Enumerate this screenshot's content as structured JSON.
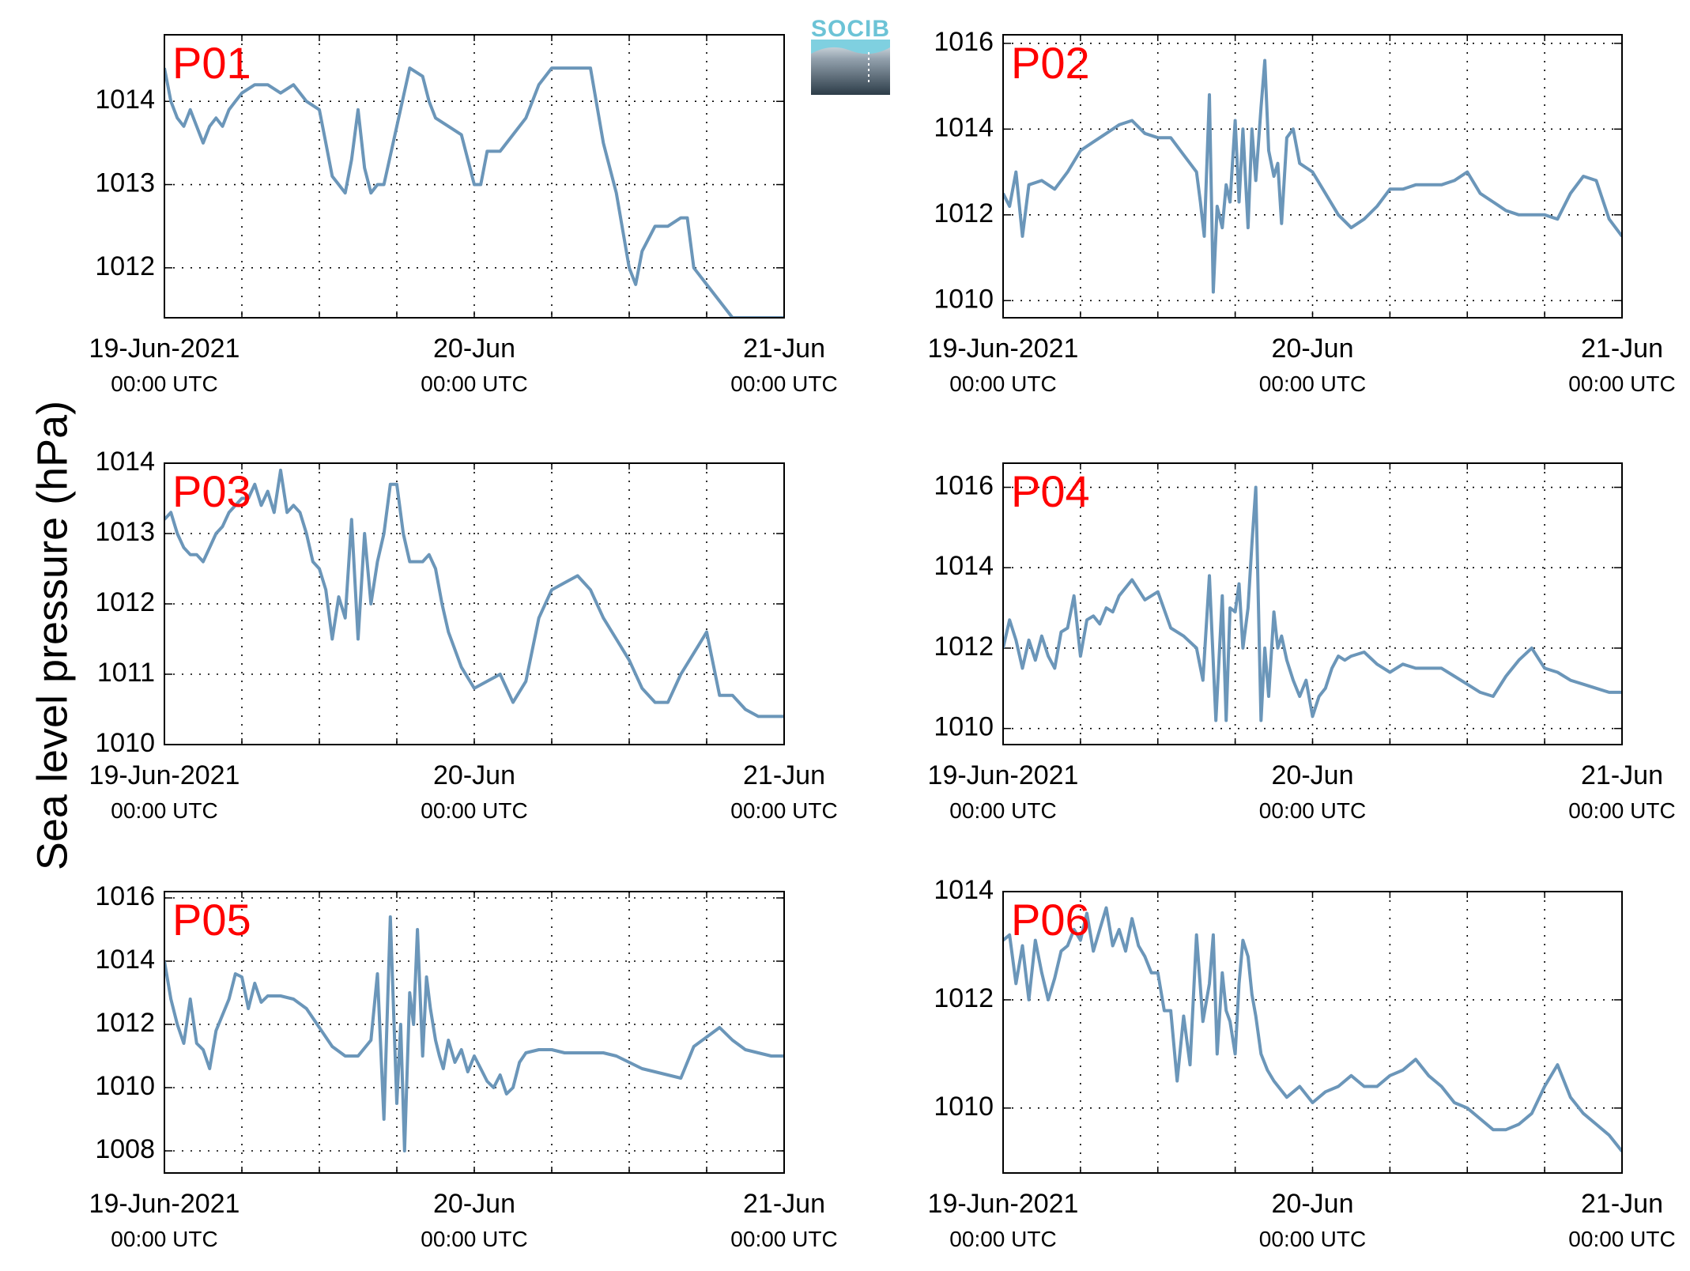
{
  "figure": {
    "ylabel": "Sea level pressure (hPa)",
    "logo_text": "SOCIB",
    "line_color": "#6b96b9",
    "label_color": "#ff0000",
    "x_ticks": [
      {
        "date": "19-Jun-2021",
        "time": "00:00 UTC"
      },
      {
        "date": "20-Jun",
        "time": "00:00 UTC"
      },
      {
        "date": "21-Jun",
        "time": "00:00 UTC"
      }
    ]
  },
  "chart_data": [
    {
      "type": "line",
      "name": "P01",
      "xlim": [
        0,
        48
      ],
      "ylim": [
        1011.4,
        1014.8
      ],
      "yticks": [
        1012,
        1013,
        1014
      ],
      "grid": true,
      "x": [
        0,
        0.5,
        1,
        1.5,
        2,
        2.5,
        3,
        3.5,
        4,
        4.5,
        5,
        5.5,
        6,
        7,
        8,
        9,
        10,
        11,
        12,
        12.5,
        13,
        13.5,
        14,
        14.5,
        15,
        15.5,
        16,
        16.5,
        17,
        18,
        19,
        20,
        20.5,
        21,
        22,
        23,
        24,
        24.5,
        25,
        26,
        27,
        28,
        29,
        30,
        31,
        32,
        33,
        34,
        35,
        36,
        36.5,
        37,
        38,
        39,
        40,
        40.5,
        41,
        42,
        43,
        44,
        45,
        46,
        47,
        48
      ],
      "y": [
        1014.4,
        1014.0,
        1013.8,
        1013.7,
        1013.9,
        1013.7,
        1013.5,
        1013.7,
        1013.8,
        1013.7,
        1013.9,
        1014.0,
        1014.1,
        1014.2,
        1014.2,
        1014.1,
        1014.2,
        1014.0,
        1013.9,
        1013.5,
        1013.1,
        1013.0,
        1012.9,
        1013.3,
        1013.9,
        1013.2,
        1012.9,
        1013.0,
        1013.0,
        1013.7,
        1014.4,
        1014.3,
        1014.0,
        1013.8,
        1013.7,
        1013.6,
        1013.0,
        1013.0,
        1013.4,
        1013.4,
        1013.6,
        1013.8,
        1014.2,
        1014.4,
        1014.4,
        1014.4,
        1014.4,
        1013.5,
        1012.9,
        1012.0,
        1011.8,
        1012.2,
        1012.5,
        1012.5,
        1012.6,
        1012.6,
        1012.0,
        1011.8,
        1011.6,
        1011.4,
        1011.4,
        1011.4,
        1011.4,
        1011.4
      ]
    },
    {
      "type": "line",
      "name": "P02",
      "xlim": [
        0,
        48
      ],
      "ylim": [
        1009.6,
        1016.2
      ],
      "yticks": [
        1010,
        1012,
        1014,
        1016
      ],
      "grid": true,
      "x": [
        0,
        0.5,
        1,
        1.5,
        2,
        3,
        4,
        5,
        6,
        7,
        8,
        9,
        10,
        11,
        12,
        13,
        14,
        15,
        15.3,
        15.6,
        16,
        16.3,
        16.6,
        17,
        17.3,
        17.6,
        18,
        18.3,
        18.6,
        19,
        19.3,
        19.6,
        20,
        20.3,
        20.6,
        21,
        21.3,
        21.6,
        22,
        22.5,
        23,
        24,
        25,
        26,
        27,
        28,
        29,
        30,
        31,
        32,
        33,
        34,
        35,
        36,
        37,
        38,
        39,
        40,
        41,
        42,
        43,
        44,
        45,
        46,
        47,
        48
      ],
      "y": [
        1012.5,
        1012.2,
        1013.0,
        1011.5,
        1012.7,
        1012.8,
        1012.6,
        1013.0,
        1013.5,
        1013.7,
        1013.9,
        1014.1,
        1014.2,
        1013.9,
        1013.8,
        1013.8,
        1013.4,
        1013.0,
        1012.3,
        1011.5,
        1014.8,
        1010.2,
        1012.2,
        1011.7,
        1012.7,
        1012.3,
        1014.2,
        1012.3,
        1014.0,
        1011.7,
        1014.0,
        1012.8,
        1014.5,
        1015.6,
        1013.5,
        1012.9,
        1013.2,
        1011.8,
        1013.8,
        1014.0,
        1013.2,
        1013.0,
        1012.5,
        1012.0,
        1011.7,
        1011.9,
        1012.2,
        1012.6,
        1012.6,
        1012.7,
        1012.7,
        1012.7,
        1012.8,
        1013.0,
        1012.5,
        1012.3,
        1012.1,
        1012.0,
        1012.0,
        1012.0,
        1011.9,
        1012.5,
        1012.9,
        1012.8,
        1011.9,
        1011.5
      ]
    },
    {
      "type": "line",
      "name": "P03",
      "xlim": [
        0,
        48
      ],
      "ylim": [
        1010,
        1014
      ],
      "yticks": [
        1010,
        1011,
        1012,
        1013,
        1014
      ],
      "grid": true,
      "x": [
        0,
        0.5,
        1,
        1.5,
        2,
        2.5,
        3,
        3.5,
        4,
        4.5,
        5,
        5.5,
        6,
        6.5,
        7,
        7.5,
        8,
        8.5,
        9,
        9.5,
        10,
        10.5,
        11,
        11.5,
        12,
        12.5,
        13,
        13.5,
        14,
        14.5,
        15,
        15.5,
        16,
        16.5,
        17,
        17.5,
        18,
        18.5,
        19,
        19.5,
        20,
        20.5,
        21,
        21.5,
        22,
        23,
        24,
        25,
        26,
        27,
        28,
        29,
        30,
        31,
        32,
        33,
        34,
        35,
        36,
        37,
        38,
        39,
        40,
        41,
        42,
        43,
        44,
        45,
        46,
        47,
        48
      ],
      "y": [
        1013.2,
        1013.3,
        1013.0,
        1012.8,
        1012.7,
        1012.7,
        1012.6,
        1012.8,
        1013.0,
        1013.1,
        1013.3,
        1013.4,
        1013.5,
        1013.5,
        1013.7,
        1013.4,
        1013.6,
        1013.3,
        1013.9,
        1013.3,
        1013.4,
        1013.3,
        1013.0,
        1012.6,
        1012.5,
        1012.2,
        1011.5,
        1012.1,
        1011.8,
        1013.2,
        1011.5,
        1013.0,
        1012.0,
        1012.6,
        1013.0,
        1013.7,
        1013.7,
        1013.0,
        1012.6,
        1012.6,
        1012.6,
        1012.7,
        1012.5,
        1012.0,
        1011.6,
        1011.1,
        1010.8,
        1010.9,
        1011.0,
        1010.6,
        1010.9,
        1011.8,
        1012.2,
        1012.3,
        1012.4,
        1012.2,
        1011.8,
        1011.5,
        1011.2,
        1010.8,
        1010.6,
        1010.6,
        1011.0,
        1011.3,
        1011.6,
        1010.7,
        1010.7,
        1010.5,
        1010.4,
        1010.4,
        1010.4
      ]
    },
    {
      "type": "line",
      "name": "P04",
      "xlim": [
        0,
        48
      ],
      "ylim": [
        1009.6,
        1016.6
      ],
      "yticks": [
        1010,
        1012,
        1014,
        1016
      ],
      "grid": true,
      "x": [
        0,
        0.5,
        1,
        1.5,
        2,
        2.5,
        3,
        3.5,
        4,
        4.5,
        5,
        5.5,
        6,
        6.5,
        7,
        7.5,
        8,
        8.5,
        9,
        10,
        11,
        12,
        13,
        14,
        15,
        15.5,
        16,
        16.5,
        17,
        17.3,
        17.6,
        18,
        18.3,
        18.6,
        19,
        19.3,
        19.6,
        20,
        20.3,
        20.6,
        21,
        21.3,
        21.6,
        22,
        22.5,
        23,
        23.5,
        24,
        24.5,
        25,
        25.5,
        26,
        26.5,
        27,
        28,
        29,
        30,
        31,
        32,
        33,
        34,
        35,
        36,
        37,
        38,
        39,
        40,
        41,
        42,
        43,
        44,
        45,
        46,
        47,
        48
      ],
      "y": [
        1012.0,
        1012.7,
        1012.2,
        1011.5,
        1012.2,
        1011.7,
        1012.3,
        1011.8,
        1011.5,
        1012.4,
        1012.5,
        1013.3,
        1011.8,
        1012.7,
        1012.8,
        1012.6,
        1013.0,
        1012.9,
        1013.3,
        1013.7,
        1013.2,
        1013.4,
        1012.5,
        1012.3,
        1012.0,
        1011.2,
        1013.8,
        1010.2,
        1013.3,
        1010.2,
        1013.0,
        1012.9,
        1013.6,
        1012.0,
        1013.0,
        1014.6,
        1016.0,
        1010.2,
        1012.0,
        1010.8,
        1012.9,
        1012.0,
        1012.3,
        1011.7,
        1011.2,
        1010.8,
        1011.2,
        1010.3,
        1010.8,
        1011.0,
        1011.5,
        1011.8,
        1011.7,
        1011.8,
        1011.9,
        1011.6,
        1011.4,
        1011.6,
        1011.5,
        1011.5,
        1011.5,
        1011.3,
        1011.1,
        1010.9,
        1010.8,
        1011.3,
        1011.7,
        1012.0,
        1011.5,
        1011.4,
        1011.2,
        1011.1,
        1011.0,
        1010.9,
        1010.9
      ]
    },
    {
      "type": "line",
      "name": "P05",
      "xlim": [
        0,
        48
      ],
      "ylim": [
        1007.3,
        1016.2
      ],
      "yticks": [
        1008,
        1010,
        1012,
        1014,
        1016
      ],
      "grid": true,
      "x": [
        0,
        0.5,
        1,
        1.5,
        2,
        2.5,
        3,
        3.5,
        4,
        4.5,
        5,
        5.5,
        6,
        6.5,
        7,
        7.5,
        8,
        9,
        10,
        11,
        12,
        13,
        14,
        15,
        16,
        16.5,
        17,
        17.5,
        18,
        18.3,
        18.6,
        19,
        19.3,
        19.6,
        20,
        20.3,
        20.6,
        21,
        21.3,
        21.6,
        22,
        22.5,
        23,
        23.5,
        24,
        24.5,
        25,
        25.5,
        26,
        26.5,
        27,
        27.5,
        28,
        29,
        30,
        31,
        32,
        33,
        34,
        35,
        36,
        37,
        38,
        39,
        40,
        41,
        42,
        43,
        44,
        45,
        46,
        47,
        48
      ],
      "y": [
        1014.0,
        1012.8,
        1012.0,
        1011.4,
        1012.8,
        1011.4,
        1011.2,
        1010.6,
        1011.8,
        1012.3,
        1012.8,
        1013.6,
        1013.5,
        1012.5,
        1013.3,
        1012.7,
        1012.9,
        1012.9,
        1012.8,
        1012.5,
        1011.9,
        1011.3,
        1011.0,
        1011.0,
        1011.5,
        1013.6,
        1009.0,
        1015.4,
        1009.5,
        1012.0,
        1008.0,
        1013.0,
        1012.0,
        1015.0,
        1011.0,
        1013.5,
        1012.5,
        1011.5,
        1011.0,
        1010.6,
        1011.5,
        1010.8,
        1011.2,
        1010.5,
        1011.0,
        1010.6,
        1010.2,
        1010.0,
        1010.4,
        1009.8,
        1010.0,
        1010.8,
        1011.1,
        1011.2,
        1011.2,
        1011.1,
        1011.1,
        1011.1,
        1011.1,
        1011.0,
        1010.8,
        1010.6,
        1010.5,
        1010.4,
        1010.3,
        1011.3,
        1011.6,
        1011.9,
        1011.5,
        1011.2,
        1011.1,
        1011.0,
        1011.0
      ]
    },
    {
      "type": "line",
      "name": "P06",
      "xlim": [
        0,
        48
      ],
      "ylim": [
        1008.8,
        1014.0
      ],
      "yticks": [
        1010,
        1012,
        1014
      ],
      "grid": true,
      "x": [
        0,
        0.5,
        1,
        1.5,
        2,
        2.5,
        3,
        3.5,
        4,
        4.5,
        5,
        5.5,
        6,
        6.5,
        7,
        7.5,
        8,
        8.5,
        9,
        9.5,
        10,
        10.5,
        11,
        11.5,
        12,
        12.5,
        13,
        13.5,
        14,
        14.5,
        15,
        15.5,
        16,
        16.3,
        16.6,
        17,
        17.3,
        17.6,
        18,
        18.3,
        18.6,
        19,
        19.3,
        19.6,
        20,
        20.5,
        21,
        22,
        23,
        24,
        25,
        26,
        27,
        28,
        29,
        30,
        31,
        32,
        33,
        34,
        35,
        36,
        37,
        38,
        39,
        40,
        41,
        42,
        43,
        44,
        45,
        46,
        47,
        48
      ],
      "y": [
        1013.1,
        1013.2,
        1012.3,
        1013.0,
        1012.0,
        1013.1,
        1012.5,
        1012.0,
        1012.4,
        1012.9,
        1013.0,
        1013.3,
        1013.1,
        1013.6,
        1012.9,
        1013.3,
        1013.7,
        1013.0,
        1013.3,
        1012.9,
        1013.5,
        1013.0,
        1012.8,
        1012.5,
        1012.5,
        1011.8,
        1011.8,
        1010.5,
        1011.7,
        1010.8,
        1013.2,
        1011.6,
        1012.3,
        1013.2,
        1011.0,
        1012.5,
        1011.8,
        1011.6,
        1011.0,
        1012.3,
        1013.1,
        1012.8,
        1012.1,
        1011.7,
        1011.0,
        1010.7,
        1010.5,
        1010.2,
        1010.4,
        1010.1,
        1010.3,
        1010.4,
        1010.6,
        1010.4,
        1010.4,
        1010.6,
        1010.7,
        1010.9,
        1010.6,
        1010.4,
        1010.1,
        1010.0,
        1009.8,
        1009.6,
        1009.6,
        1009.7,
        1009.9,
        1010.4,
        1010.8,
        1010.2,
        1009.9,
        1009.7,
        1009.5,
        1009.2
      ]
    }
  ]
}
